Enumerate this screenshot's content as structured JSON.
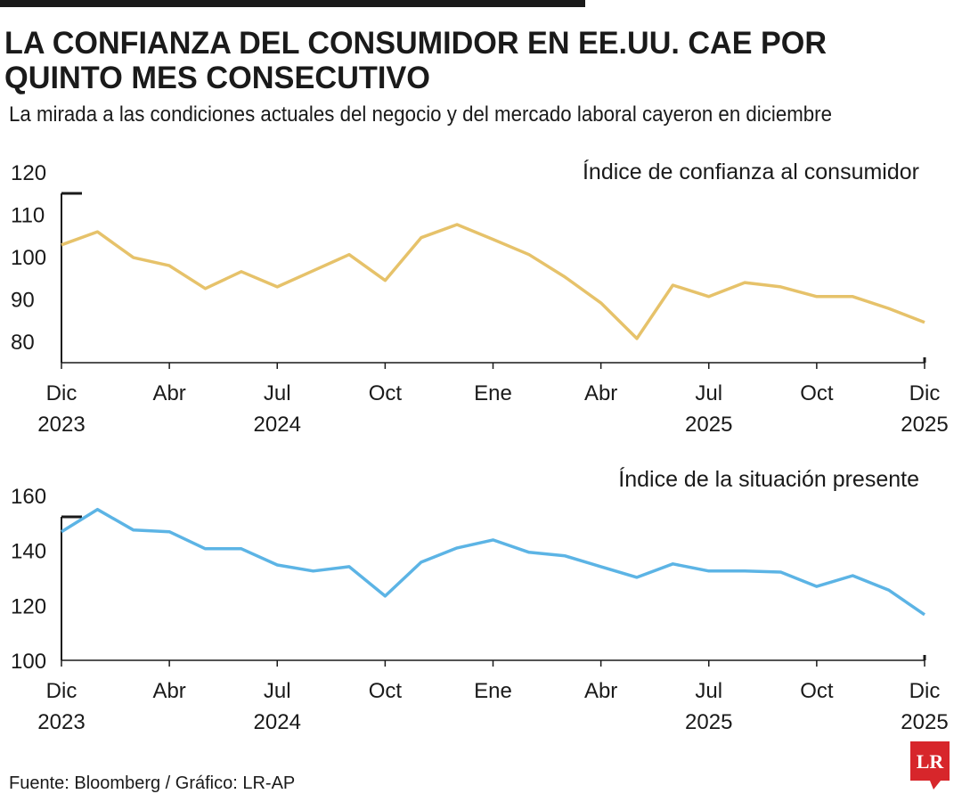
{
  "header": {
    "title": [
      "LA CONFIANZA DEL CONSUMIDOR EN EE.UU. CAE POR",
      "QUINTO MES CONSECUTIVO"
    ],
    "subtitle": "La mirada a las condiciones actuales del negocio y del mercado laboral cayeron en diciembre"
  },
  "chart_data": [
    {
      "type": "line",
      "title": "Índice de confianza al consumidor",
      "categories": [
        "Dic 2023",
        null,
        null,
        "Abr",
        null,
        null,
        "Jul 2024",
        null,
        null,
        "Oct",
        null,
        null,
        "Ene",
        null,
        null,
        "Abr",
        null,
        null,
        "Jul 2025",
        null,
        null,
        "Oct",
        null,
        null,
        "Dic 2025"
      ],
      "values": [
        102.8,
        105.9,
        99.8,
        97.9,
        92.5,
        96.5,
        92.9,
        96.7,
        100.5,
        94.4,
        104.5,
        107.6,
        104.1,
        100.5,
        95.2,
        89.1,
        80.7,
        93.3,
        90.6,
        93.9,
        92.9,
        90.6,
        90.6,
        87.8,
        84.5
      ],
      "color": "#e6c26a",
      "ylim": [
        75,
        120
      ],
      "yticks": [
        80,
        90,
        100,
        110,
        120
      ]
    },
    {
      "type": "line",
      "title": "Índice de la situación presente",
      "categories": [
        "Dic 2023",
        null,
        null,
        "Abr",
        null,
        null,
        "Jul 2024",
        null,
        null,
        "Oct",
        null,
        null,
        "Ene",
        null,
        null,
        "Abr",
        null,
        null,
        "Jul 2025",
        null,
        null,
        "Oct",
        null,
        null,
        "Dic 2025"
      ],
      "values": [
        146.8,
        154.9,
        147.4,
        146.8,
        140.6,
        140.6,
        134.7,
        132.5,
        134.1,
        123.4,
        135.7,
        140.9,
        143.8,
        139.3,
        138.0,
        134.1,
        130.2,
        135.1,
        132.5,
        132.5,
        132.1,
        126.9,
        130.8,
        125.6,
        116.6
      ],
      "color": "#5cb4e5",
      "ylim": [
        100,
        160
      ],
      "yticks": [
        100,
        120,
        140,
        160
      ]
    }
  ],
  "source": "Fuente: Bloomberg / Gráfico: LR-AP",
  "logo": "LR"
}
